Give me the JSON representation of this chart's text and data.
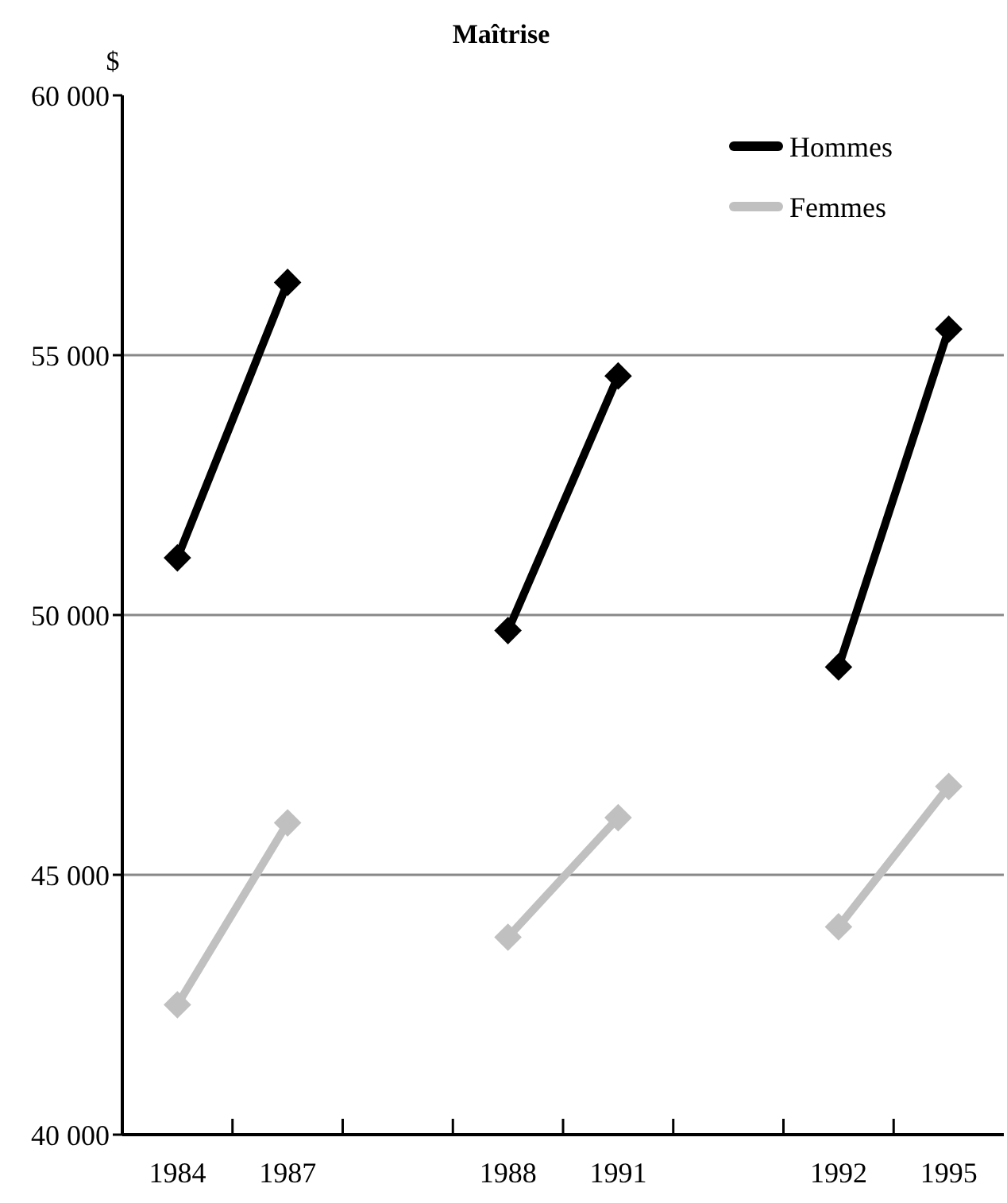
{
  "chart_data": {
    "type": "line",
    "title": "Maîtrise",
    "ylabel": "$",
    "categories": [
      "1984",
      "1987",
      null,
      "1988",
      "1991",
      null,
      "1992",
      "1995"
    ],
    "series": [
      {
        "name": "Hommes",
        "color": "#000000",
        "values": [
          51100,
          56400,
          null,
          49700,
          54600,
          null,
          49000,
          55500
        ]
      },
      {
        "name": "Femmes",
        "color": "#c0c0c0",
        "values": [
          42500,
          46000,
          null,
          43800,
          46100,
          null,
          44000,
          46700
        ]
      }
    ],
    "ylim": [
      40000,
      60000
    ],
    "yticks": [
      {
        "value": 40000,
        "label": "40 000"
      },
      {
        "value": 45000,
        "label": "45 000"
      },
      {
        "value": 50000,
        "label": "50 000"
      },
      {
        "value": 55000,
        "label": "55 000"
      },
      {
        "value": 60000,
        "label": "60 000"
      }
    ],
    "grid": "y",
    "legend": "top right",
    "marker": "diamond",
    "line_style": "solid"
  }
}
